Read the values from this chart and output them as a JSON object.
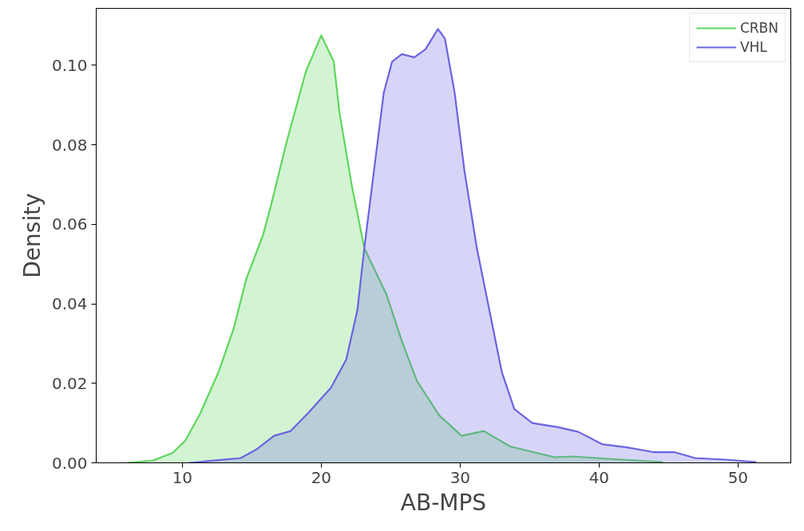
{
  "chart_data": {
    "type": "area",
    "xlabel": "AB-MPS",
    "ylabel": "Density",
    "xlim": [
      3.8,
      53.8
    ],
    "ylim": [
      0,
      0.1143
    ],
    "xticks": [
      10,
      20,
      30,
      40,
      50
    ],
    "yticks": [
      {
        "value": 0,
        "label": "0.00"
      },
      {
        "value": 0.02,
        "label": "0.02"
      },
      {
        "value": 0.04,
        "label": "0.04"
      },
      {
        "value": 0.06,
        "label": "0.06"
      },
      {
        "value": 0.08,
        "label": "0.08"
      },
      {
        "value": 0.1,
        "label": "0.10"
      }
    ],
    "grid": false,
    "legend": "top right",
    "line_style": "solid",
    "marker": "none",
    "series": [
      {
        "name": "CRBN",
        "color": "#5ed65e",
        "x": [
          6.0,
          7.9,
          9.3,
          10.2,
          11.3,
          12.6,
          13.7,
          14.6,
          15.8,
          16.4,
          17.5,
          18.9,
          20.0,
          20.9,
          21.3,
          22.2,
          23.1,
          24.7,
          25.8,
          26.9,
          28.5,
          30.1,
          31.7,
          33.6,
          36.8,
          38.1,
          40.7,
          44.6
        ],
        "values": [
          0,
          0.0006,
          0.0025,
          0.0055,
          0.0125,
          0.0228,
          0.0338,
          0.0462,
          0.0572,
          0.065,
          0.0806,
          0.0985,
          0.1075,
          0.1009,
          0.0884,
          0.0697,
          0.054,
          0.0423,
          0.0306,
          0.0205,
          0.0119,
          0.0068,
          0.008,
          0.0041,
          0.0014,
          0.0016,
          0.001,
          0.0002
        ]
      },
      {
        "name": "VHL",
        "color": "#6a64e0",
        "x": [
          10.5,
          14.2,
          15.3,
          16.6,
          17.8,
          19.1,
          20.7,
          21.8,
          22.6,
          23.1,
          23.8,
          24.5,
          25.1,
          25.8,
          26.7,
          27.5,
          28.4,
          28.9,
          29.6,
          30.3,
          31.2,
          32.1,
          33.0,
          33.9,
          35.2,
          37.0,
          38.5,
          40.2,
          42.0,
          43.9,
          45.4,
          46.9,
          49.1,
          51.3
        ],
        "values": [
          0,
          0.0012,
          0.0033,
          0.0068,
          0.008,
          0.0127,
          0.0189,
          0.026,
          0.0384,
          0.054,
          0.0736,
          0.0931,
          0.1009,
          0.1028,
          0.102,
          0.104,
          0.1091,
          0.1067,
          0.0931,
          0.0736,
          0.054,
          0.0384,
          0.0228,
          0.0135,
          0.01,
          0.009,
          0.0078,
          0.0047,
          0.0039,
          0.0027,
          0.0027,
          0.0012,
          0.0008,
          0.0002
        ]
      }
    ]
  }
}
